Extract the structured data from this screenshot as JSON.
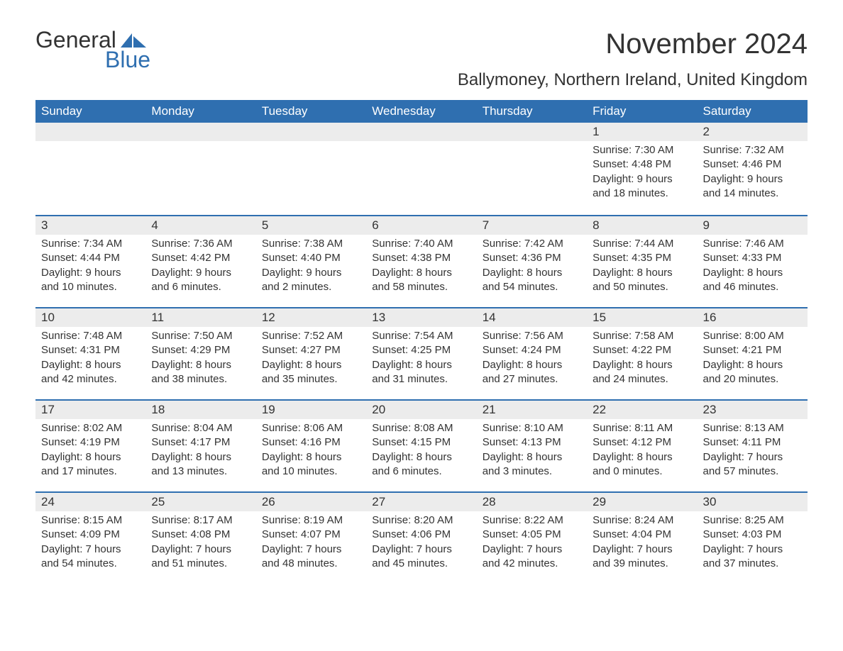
{
  "logo": {
    "text1": "General",
    "text2": "Blue",
    "brand_color": "#2f6fb0"
  },
  "title": "November 2024",
  "location": "Ballymoney, Northern Ireland, United Kingdom",
  "colors": {
    "header_bg": "#2f6fb0",
    "header_text": "#ffffff",
    "week_border": "#2f6fb0",
    "daynum_bg": "#ececec",
    "body_text": "#333333",
    "page_bg": "#ffffff"
  },
  "typography": {
    "month_title_size_pt": 30,
    "location_size_pt": 18,
    "weekday_size_pt": 13,
    "body_size_pt": 11
  },
  "weekdays": [
    "Sunday",
    "Monday",
    "Tuesday",
    "Wednesday",
    "Thursday",
    "Friday",
    "Saturday"
  ],
  "weeks": [
    [
      null,
      null,
      null,
      null,
      null,
      {
        "n": "1",
        "sunrise": "Sunrise: 7:30 AM",
        "sunset": "Sunset: 4:48 PM",
        "d1": "Daylight: 9 hours",
        "d2": "and 18 minutes."
      },
      {
        "n": "2",
        "sunrise": "Sunrise: 7:32 AM",
        "sunset": "Sunset: 4:46 PM",
        "d1": "Daylight: 9 hours",
        "d2": "and 14 minutes."
      }
    ],
    [
      {
        "n": "3",
        "sunrise": "Sunrise: 7:34 AM",
        "sunset": "Sunset: 4:44 PM",
        "d1": "Daylight: 9 hours",
        "d2": "and 10 minutes."
      },
      {
        "n": "4",
        "sunrise": "Sunrise: 7:36 AM",
        "sunset": "Sunset: 4:42 PM",
        "d1": "Daylight: 9 hours",
        "d2": "and 6 minutes."
      },
      {
        "n": "5",
        "sunrise": "Sunrise: 7:38 AM",
        "sunset": "Sunset: 4:40 PM",
        "d1": "Daylight: 9 hours",
        "d2": "and 2 minutes."
      },
      {
        "n": "6",
        "sunrise": "Sunrise: 7:40 AM",
        "sunset": "Sunset: 4:38 PM",
        "d1": "Daylight: 8 hours",
        "d2": "and 58 minutes."
      },
      {
        "n": "7",
        "sunrise": "Sunrise: 7:42 AM",
        "sunset": "Sunset: 4:36 PM",
        "d1": "Daylight: 8 hours",
        "d2": "and 54 minutes."
      },
      {
        "n": "8",
        "sunrise": "Sunrise: 7:44 AM",
        "sunset": "Sunset: 4:35 PM",
        "d1": "Daylight: 8 hours",
        "d2": "and 50 minutes."
      },
      {
        "n": "9",
        "sunrise": "Sunrise: 7:46 AM",
        "sunset": "Sunset: 4:33 PM",
        "d1": "Daylight: 8 hours",
        "d2": "and 46 minutes."
      }
    ],
    [
      {
        "n": "10",
        "sunrise": "Sunrise: 7:48 AM",
        "sunset": "Sunset: 4:31 PM",
        "d1": "Daylight: 8 hours",
        "d2": "and 42 minutes."
      },
      {
        "n": "11",
        "sunrise": "Sunrise: 7:50 AM",
        "sunset": "Sunset: 4:29 PM",
        "d1": "Daylight: 8 hours",
        "d2": "and 38 minutes."
      },
      {
        "n": "12",
        "sunrise": "Sunrise: 7:52 AM",
        "sunset": "Sunset: 4:27 PM",
        "d1": "Daylight: 8 hours",
        "d2": "and 35 minutes."
      },
      {
        "n": "13",
        "sunrise": "Sunrise: 7:54 AM",
        "sunset": "Sunset: 4:25 PM",
        "d1": "Daylight: 8 hours",
        "d2": "and 31 minutes."
      },
      {
        "n": "14",
        "sunrise": "Sunrise: 7:56 AM",
        "sunset": "Sunset: 4:24 PM",
        "d1": "Daylight: 8 hours",
        "d2": "and 27 minutes."
      },
      {
        "n": "15",
        "sunrise": "Sunrise: 7:58 AM",
        "sunset": "Sunset: 4:22 PM",
        "d1": "Daylight: 8 hours",
        "d2": "and 24 minutes."
      },
      {
        "n": "16",
        "sunrise": "Sunrise: 8:00 AM",
        "sunset": "Sunset: 4:21 PM",
        "d1": "Daylight: 8 hours",
        "d2": "and 20 minutes."
      }
    ],
    [
      {
        "n": "17",
        "sunrise": "Sunrise: 8:02 AM",
        "sunset": "Sunset: 4:19 PM",
        "d1": "Daylight: 8 hours",
        "d2": "and 17 minutes."
      },
      {
        "n": "18",
        "sunrise": "Sunrise: 8:04 AM",
        "sunset": "Sunset: 4:17 PM",
        "d1": "Daylight: 8 hours",
        "d2": "and 13 minutes."
      },
      {
        "n": "19",
        "sunrise": "Sunrise: 8:06 AM",
        "sunset": "Sunset: 4:16 PM",
        "d1": "Daylight: 8 hours",
        "d2": "and 10 minutes."
      },
      {
        "n": "20",
        "sunrise": "Sunrise: 8:08 AM",
        "sunset": "Sunset: 4:15 PM",
        "d1": "Daylight: 8 hours",
        "d2": "and 6 minutes."
      },
      {
        "n": "21",
        "sunrise": "Sunrise: 8:10 AM",
        "sunset": "Sunset: 4:13 PM",
        "d1": "Daylight: 8 hours",
        "d2": "and 3 minutes."
      },
      {
        "n": "22",
        "sunrise": "Sunrise: 8:11 AM",
        "sunset": "Sunset: 4:12 PM",
        "d1": "Daylight: 8 hours",
        "d2": "and 0 minutes."
      },
      {
        "n": "23",
        "sunrise": "Sunrise: 8:13 AM",
        "sunset": "Sunset: 4:11 PM",
        "d1": "Daylight: 7 hours",
        "d2": "and 57 minutes."
      }
    ],
    [
      {
        "n": "24",
        "sunrise": "Sunrise: 8:15 AM",
        "sunset": "Sunset: 4:09 PM",
        "d1": "Daylight: 7 hours",
        "d2": "and 54 minutes."
      },
      {
        "n": "25",
        "sunrise": "Sunrise: 8:17 AM",
        "sunset": "Sunset: 4:08 PM",
        "d1": "Daylight: 7 hours",
        "d2": "and 51 minutes."
      },
      {
        "n": "26",
        "sunrise": "Sunrise: 8:19 AM",
        "sunset": "Sunset: 4:07 PM",
        "d1": "Daylight: 7 hours",
        "d2": "and 48 minutes."
      },
      {
        "n": "27",
        "sunrise": "Sunrise: 8:20 AM",
        "sunset": "Sunset: 4:06 PM",
        "d1": "Daylight: 7 hours",
        "d2": "and 45 minutes."
      },
      {
        "n": "28",
        "sunrise": "Sunrise: 8:22 AM",
        "sunset": "Sunset: 4:05 PM",
        "d1": "Daylight: 7 hours",
        "d2": "and 42 minutes."
      },
      {
        "n": "29",
        "sunrise": "Sunrise: 8:24 AM",
        "sunset": "Sunset: 4:04 PM",
        "d1": "Daylight: 7 hours",
        "d2": "and 39 minutes."
      },
      {
        "n": "30",
        "sunrise": "Sunrise: 8:25 AM",
        "sunset": "Sunset: 4:03 PM",
        "d1": "Daylight: 7 hours",
        "d2": "and 37 minutes."
      }
    ]
  ]
}
